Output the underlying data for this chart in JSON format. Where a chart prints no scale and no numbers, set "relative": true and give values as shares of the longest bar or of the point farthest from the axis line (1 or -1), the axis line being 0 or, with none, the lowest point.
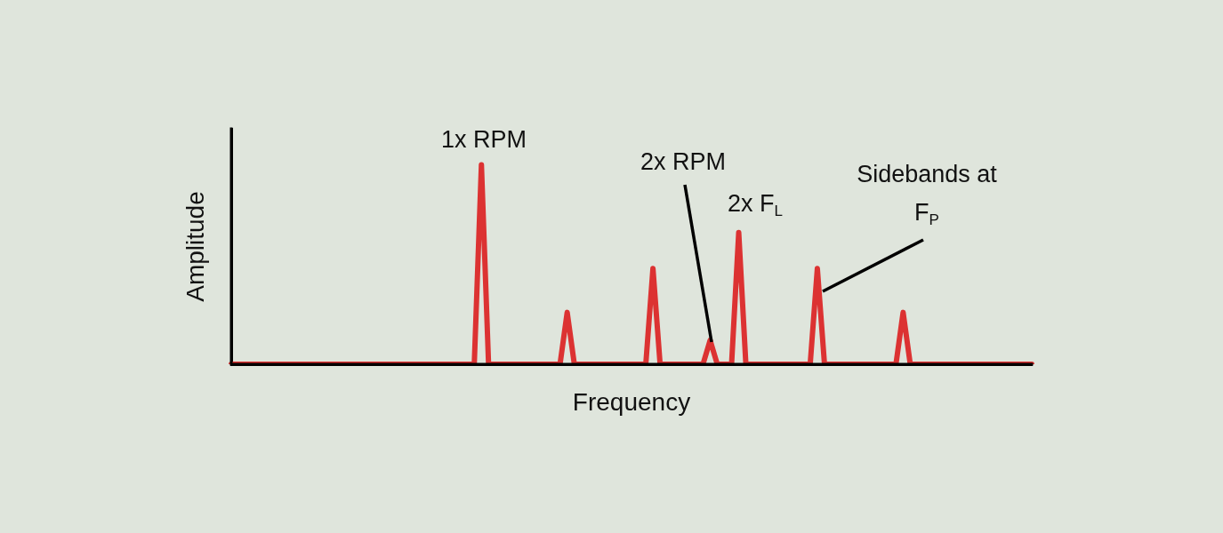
{
  "chart_data": {
    "type": "line",
    "relative": true,
    "xlabel": "Frequency",
    "ylabel": "Amplitude",
    "categories": [
      null,
      null,
      null,
      null,
      null,
      null,
      null,
      null,
      null,
      null,
      null,
      null,
      null,
      null,
      null,
      null,
      null,
      null,
      null,
      null,
      null,
      null,
      null,
      null,
      null,
      null,
      null,
      null,
      null,
      null,
      null,
      null,
      null,
      null,
      null,
      null,
      null,
      null,
      null,
      null,
      null,
      null,
      null,
      null,
      null,
      null,
      null,
      null,
      null,
      null,
      null,
      null,
      null,
      null,
      null,
      null,
      null,
      null,
      null,
      null,
      null,
      null,
      null,
      null,
      null,
      null,
      null,
      null,
      null,
      null,
      null,
      null,
      null,
      null,
      null,
      null,
      null,
      null,
      null,
      null,
      null,
      null,
      null,
      null,
      null,
      null,
      null,
      null,
      null,
      null,
      null,
      null,
      null,
      null,
      null,
      null,
      null,
      null,
      null,
      null,
      null,
      null,
      null,
      null,
      null,
      null,
      null,
      null,
      null,
      null,
      null,
      null,
      null
    ],
    "values": [
      0,
      0,
      0,
      0,
      0,
      0,
      0,
      0,
      0,
      0,
      0,
      0,
      0,
      0,
      0,
      0,
      0,
      0,
      0,
      0,
      0,
      0,
      0,
      0,
      0,
      0,
      0,
      0,
      0,
      0,
      0,
      0,
      0,
      0,
      0,
      1,
      0,
      0,
      0,
      0,
      0,
      0,
      0,
      0,
      0,
      0,
      0,
      0.26,
      0,
      0,
      0,
      0,
      0,
      0,
      0,
      0,
      0,
      0,
      0,
      0.48,
      0,
      0,
      0,
      0,
      0,
      0,
      0,
      0.12,
      0,
      0,
      0,
      0.66,
      0,
      0,
      0,
      0,
      0,
      0,
      0,
      0,
      0,
      0,
      0.48,
      0,
      0,
      0,
      0,
      0,
      0,
      0,
      0,
      0,
      0,
      0,
      0.26,
      0,
      0,
      0,
      0,
      0,
      0,
      0,
      0,
      0,
      0,
      0,
      0,
      0,
      0,
      0,
      0,
      0,
      0
    ],
    "color": "#dc3232",
    "annotations": [
      "1x RPM",
      "2x RPM",
      "2x F$_{L}$",
      "Sidebands at F$_{P}$"
    ],
    "marker": "none",
    "line_style": "solid"
  }
}
